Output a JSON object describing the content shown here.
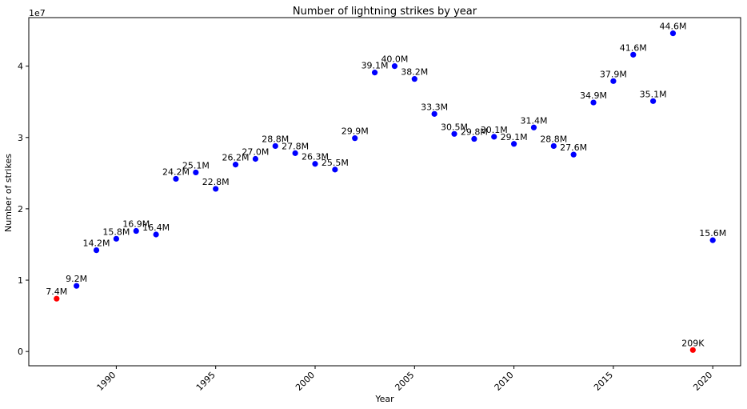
{
  "chart_data": {
    "type": "scatter",
    "title": "Number of lightning strikes by year",
    "xlabel": "Year",
    "ylabel": "Number of strikes",
    "y_offset_text": "1e7",
    "xlim": [
      1985.6,
      2021.4
    ],
    "ylim": [
      -2000000,
      46800000
    ],
    "x_ticks": [
      1990,
      1995,
      2000,
      2005,
      2010,
      2015,
      2020
    ],
    "x_tick_labels": [
      "1990",
      "1995",
      "2000",
      "2005",
      "2010",
      "2015",
      "2020"
    ],
    "y_ticks": [
      0,
      10000000,
      20000000,
      30000000,
      40000000
    ],
    "y_tick_labels": [
      "0",
      "1",
      "2",
      "3",
      "4"
    ],
    "grid": false,
    "colors": {
      "normal": "#0000ff",
      "highlight": "#ff0000"
    },
    "points": [
      {
        "x": 1987,
        "y": 7400000,
        "label": "7.4M",
        "color": "highlight"
      },
      {
        "x": 1988,
        "y": 9200000,
        "label": "9.2M",
        "color": "normal"
      },
      {
        "x": 1989,
        "y": 14200000,
        "label": "14.2M",
        "color": "normal"
      },
      {
        "x": 1990,
        "y": 15800000,
        "label": "15.8M",
        "color": "normal"
      },
      {
        "x": 1991,
        "y": 16900000,
        "label": "16.9M",
        "color": "normal"
      },
      {
        "x": 1992,
        "y": 16400000,
        "label": "16.4M",
        "color": "normal"
      },
      {
        "x": 1993,
        "y": 24200000,
        "label": "24.2M",
        "color": "normal"
      },
      {
        "x": 1994,
        "y": 25100000,
        "label": "25.1M",
        "color": "normal"
      },
      {
        "x": 1995,
        "y": 22800000,
        "label": "22.8M",
        "color": "normal"
      },
      {
        "x": 1996,
        "y": 26200000,
        "label": "26.2M",
        "color": "normal"
      },
      {
        "x": 1997,
        "y": 27000000,
        "label": "27.0M",
        "color": "normal"
      },
      {
        "x": 1998,
        "y": 28800000,
        "label": "28.8M",
        "color": "normal"
      },
      {
        "x": 1999,
        "y": 27800000,
        "label": "27.8M",
        "color": "normal"
      },
      {
        "x": 2000,
        "y": 26300000,
        "label": "26.3M",
        "color": "normal"
      },
      {
        "x": 2001,
        "y": 25500000,
        "label": "25.5M",
        "color": "normal"
      },
      {
        "x": 2002,
        "y": 29900000,
        "label": "29.9M",
        "color": "normal"
      },
      {
        "x": 2003,
        "y": 39100000,
        "label": "39.1M",
        "color": "normal"
      },
      {
        "x": 2004,
        "y": 40000000,
        "label": "40.0M",
        "color": "normal"
      },
      {
        "x": 2005,
        "y": 38200000,
        "label": "38.2M",
        "color": "normal"
      },
      {
        "x": 2006,
        "y": 33300000,
        "label": "33.3M",
        "color": "normal"
      },
      {
        "x": 2007,
        "y": 30500000,
        "label": "30.5M",
        "color": "normal"
      },
      {
        "x": 2008,
        "y": 29800000,
        "label": "29.8M",
        "color": "normal"
      },
      {
        "x": 2009,
        "y": 30100000,
        "label": "30.1M",
        "color": "normal"
      },
      {
        "x": 2010,
        "y": 29100000,
        "label": "29.1M",
        "color": "normal"
      },
      {
        "x": 2011,
        "y": 31400000,
        "label": "31.4M",
        "color": "normal"
      },
      {
        "x": 2012,
        "y": 28800000,
        "label": "28.8M",
        "color": "normal"
      },
      {
        "x": 2013,
        "y": 27600000,
        "label": "27.6M",
        "color": "normal"
      },
      {
        "x": 2014,
        "y": 34900000,
        "label": "34.9M",
        "color": "normal"
      },
      {
        "x": 2015,
        "y": 37900000,
        "label": "37.9M",
        "color": "normal"
      },
      {
        "x": 2016,
        "y": 41600000,
        "label": "41.6M",
        "color": "normal"
      },
      {
        "x": 2017,
        "y": 35100000,
        "label": "35.1M",
        "color": "normal"
      },
      {
        "x": 2018,
        "y": 44600000,
        "label": "44.6M",
        "color": "normal"
      },
      {
        "x": 2019,
        "y": 209000,
        "label": "209K",
        "color": "highlight"
      },
      {
        "x": 2020,
        "y": 15600000,
        "label": "15.6M",
        "color": "normal"
      }
    ]
  }
}
